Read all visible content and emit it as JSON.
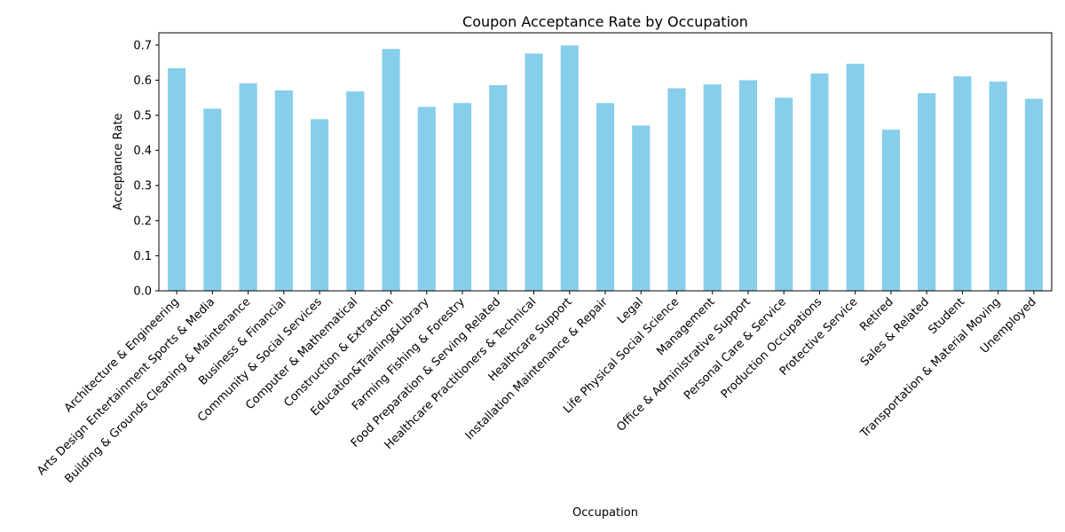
{
  "chart_data": {
    "type": "bar",
    "title": "Coupon Acceptance Rate by Occupation",
    "xlabel": "Occupation",
    "ylabel": "Acceptance Rate",
    "ylim": [
      0,
      0.735
    ],
    "yticks": [
      "0.0",
      "0.1",
      "0.2",
      "0.3",
      "0.4",
      "0.5",
      "0.6",
      "0.7"
    ],
    "grid": false,
    "legend": "none",
    "bar_color": "#87CEEB",
    "categories": [
      "Architecture & Engineering",
      "Arts Design Entertainment Sports & Media",
      "Building & Grounds Cleaning & Maintenance",
      "Business & Financial",
      "Community & Social Services",
      "Computer & Mathematical",
      "Construction & Extraction",
      "Education&Training&Library",
      "Farming Fishing & Forestry",
      "Food Preparation & Serving Related",
      "Healthcare Practitioners & Technical",
      "Healthcare Support",
      "Installation Maintenance & Repair",
      "Legal",
      "Life Physical Social Science",
      "Management",
      "Office & Administrative Support",
      "Personal Care & Service",
      "Production Occupations",
      "Protective Service",
      "Retired",
      "Sales & Related",
      "Student",
      "Transportation & Material Moving",
      "Unemployed"
    ],
    "values": [
      0.634,
      0.519,
      0.591,
      0.571,
      0.489,
      0.568,
      0.689,
      0.524,
      0.535,
      0.586,
      0.676,
      0.699,
      0.535,
      0.471,
      0.577,
      0.588,
      0.6,
      0.55,
      0.619,
      0.647,
      0.459,
      0.563,
      0.611,
      0.596,
      0.547
    ]
  }
}
